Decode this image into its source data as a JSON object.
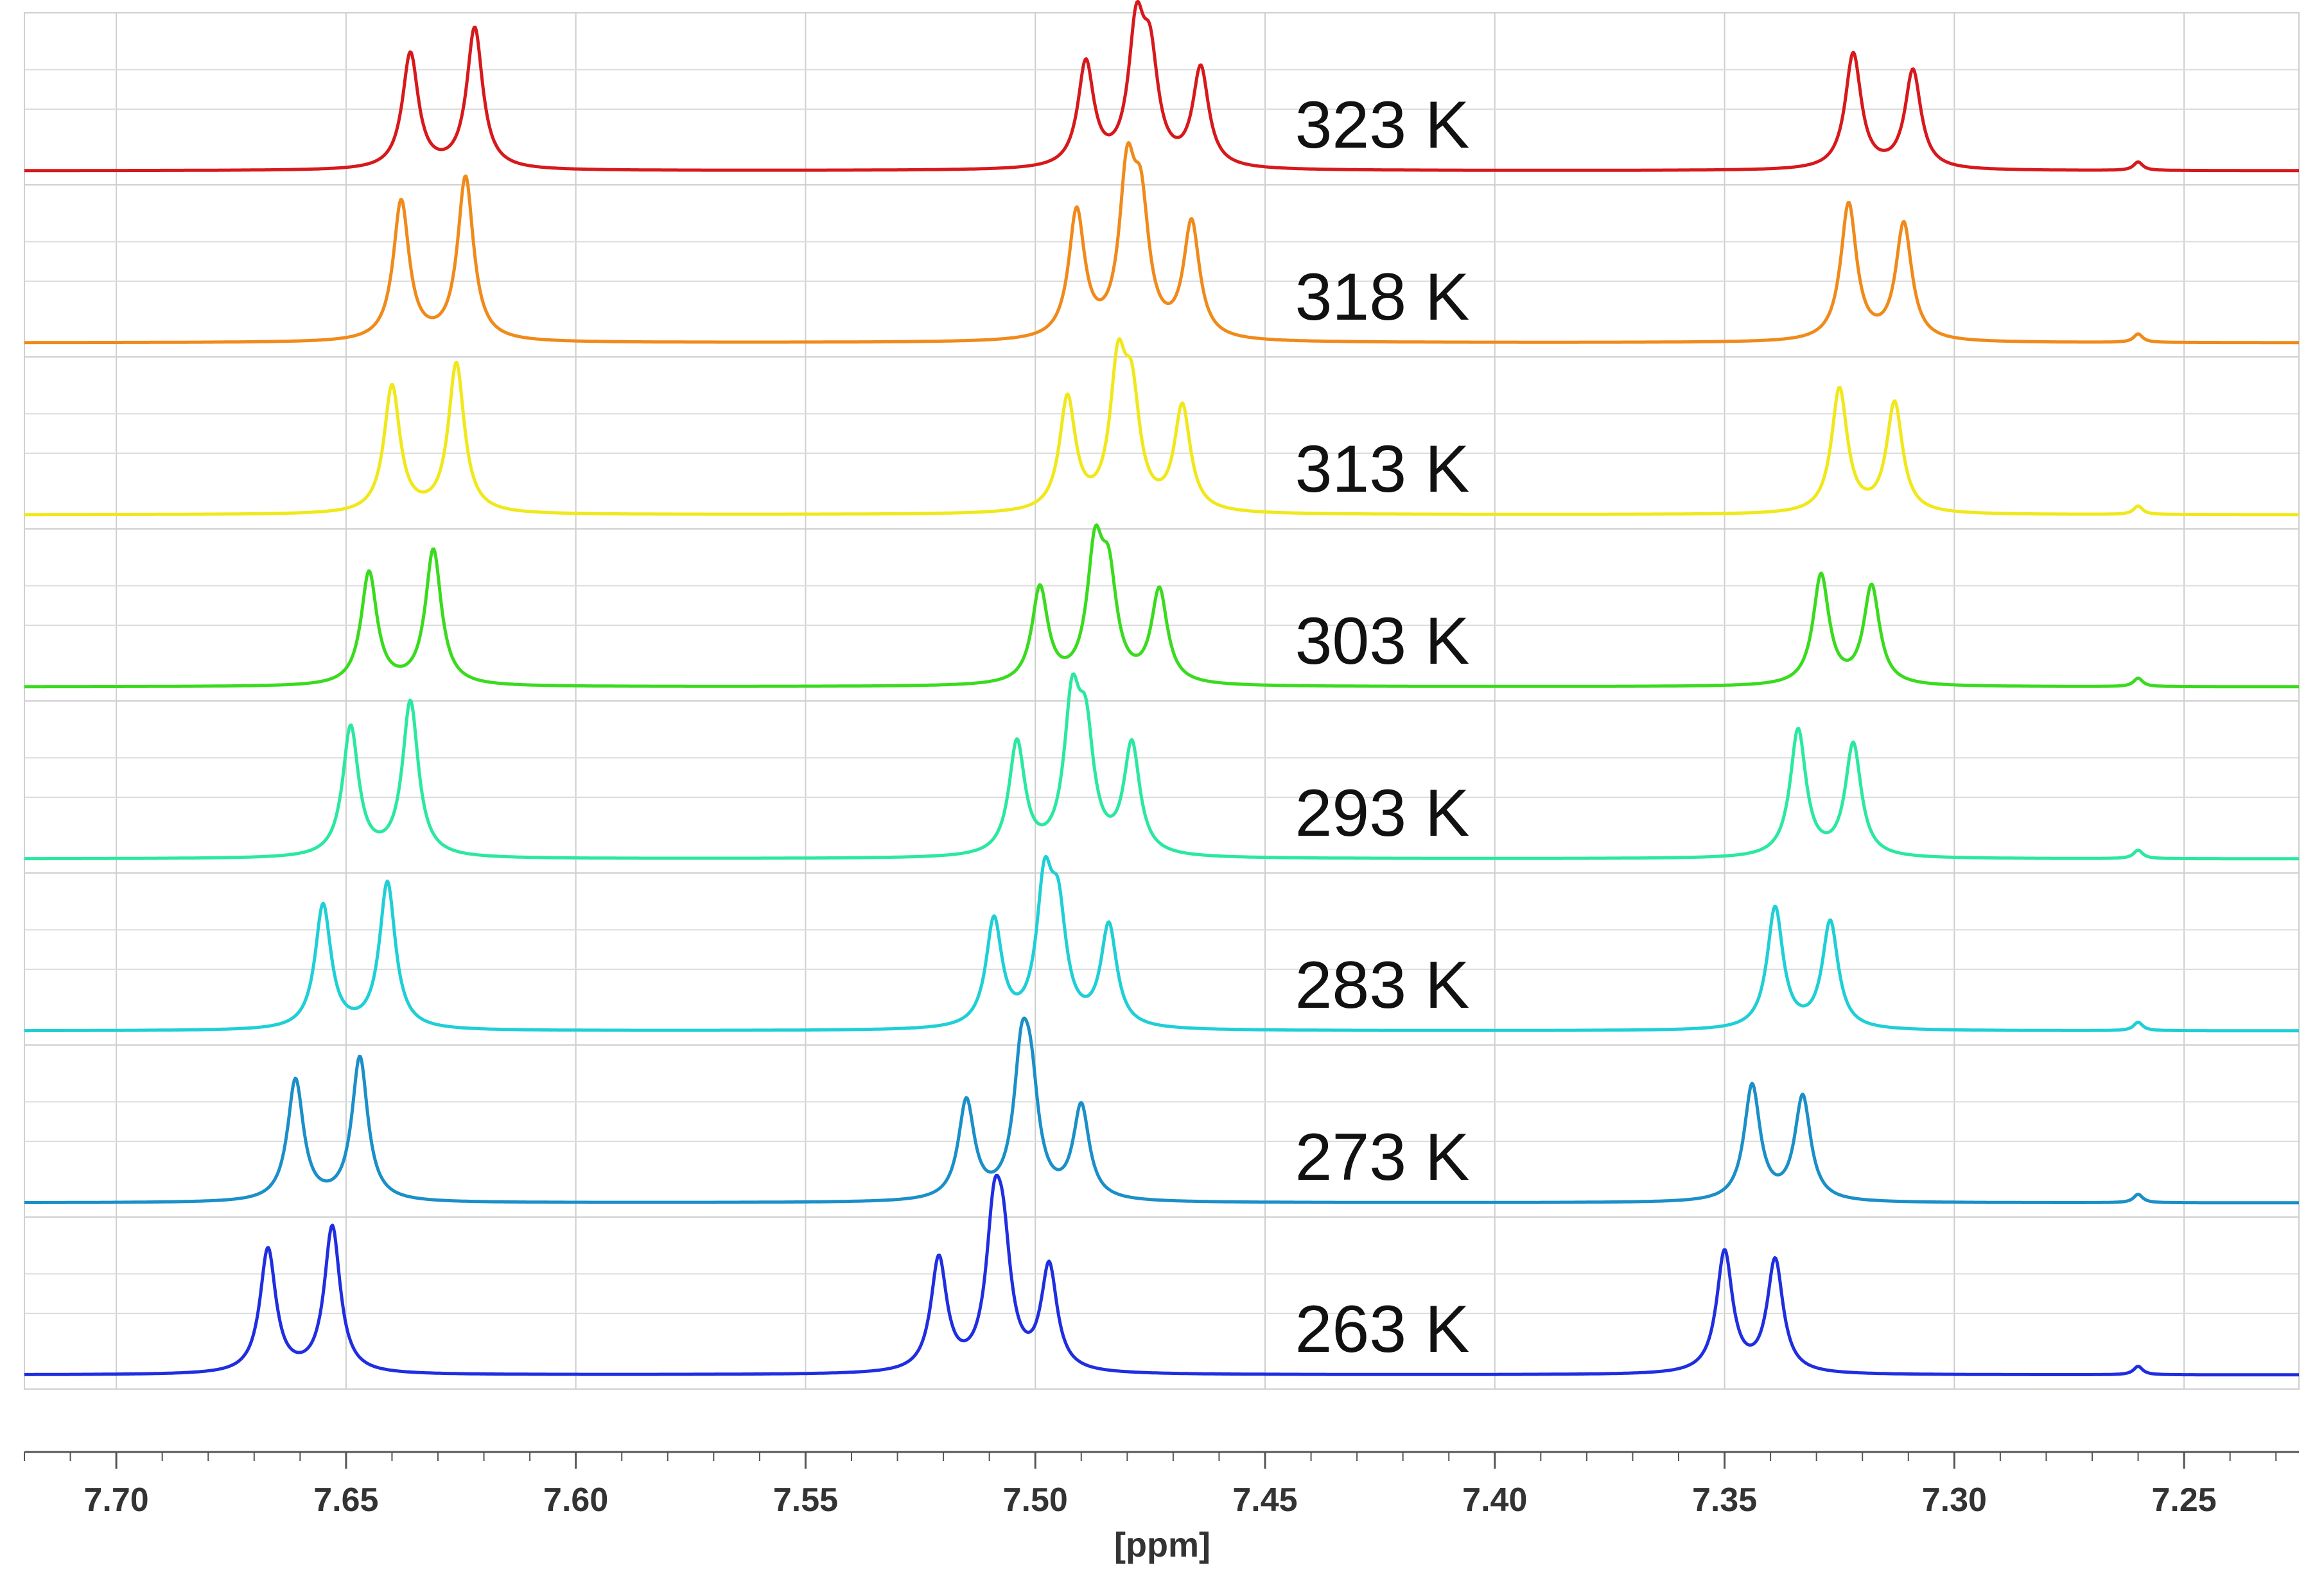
{
  "chart_data": {
    "type": "line",
    "title": "",
    "xlabel": "[ppm]",
    "ylabel": "",
    "x_reversed": true,
    "xlim": [
      7.72,
      7.225
    ],
    "x_ticks": [
      7.7,
      7.65,
      7.6,
      7.55,
      7.5,
      7.45,
      7.4,
      7.35,
      7.3,
      7.25
    ],
    "x_tick_labels": [
      "7.70",
      "7.65",
      "7.60",
      "7.55",
      "7.50",
      "7.45",
      "7.40",
      "7.35",
      "7.30",
      "7.25"
    ],
    "grid": true,
    "legend": "none (series labeled inline)",
    "series": [
      {
        "name": "323 K",
        "color": "#d7191c",
        "peaks": [
          {
            "x": 7.636,
            "h": 0.82
          },
          {
            "x": 7.622,
            "h": 1.0
          },
          {
            "x": 7.489,
            "h": 0.74
          },
          {
            "x": 7.478,
            "h": 0.92
          },
          {
            "x": 7.475,
            "h": 0.68
          },
          {
            "x": 7.464,
            "h": 0.7
          },
          {
            "x": 7.322,
            "h": 0.82
          },
          {
            "x": 7.309,
            "h": 0.7
          },
          {
            "x": 7.26,
            "h": 0.06
          }
        ]
      },
      {
        "name": "318 K",
        "color": "#f08a1a",
        "peaks": [
          {
            "x": 7.638,
            "h": 0.99
          },
          {
            "x": 7.624,
            "h": 1.16
          },
          {
            "x": 7.491,
            "h": 0.9
          },
          {
            "x": 7.48,
            "h": 1.08
          },
          {
            "x": 7.477,
            "h": 0.82
          },
          {
            "x": 7.466,
            "h": 0.82
          },
          {
            "x": 7.323,
            "h": 0.97
          },
          {
            "x": 7.311,
            "h": 0.83
          },
          {
            "x": 7.26,
            "h": 0.06
          }
        ]
      },
      {
        "name": "313 K",
        "color": "#f0e81a",
        "peaks": [
          {
            "x": 7.64,
            "h": 0.9
          },
          {
            "x": 7.626,
            "h": 1.06
          },
          {
            "x": 7.493,
            "h": 0.8
          },
          {
            "x": 7.482,
            "h": 0.95
          },
          {
            "x": 7.479,
            "h": 0.72
          },
          {
            "x": 7.468,
            "h": 0.74
          },
          {
            "x": 7.325,
            "h": 0.88
          },
          {
            "x": 7.313,
            "h": 0.78
          },
          {
            "x": 7.26,
            "h": 0.06
          }
        ]
      },
      {
        "name": "303 K",
        "color": "#3adb1f",
        "peaks": [
          {
            "x": 7.645,
            "h": 0.8
          },
          {
            "x": 7.631,
            "h": 0.96
          },
          {
            "x": 7.499,
            "h": 0.68
          },
          {
            "x": 7.487,
            "h": 0.88
          },
          {
            "x": 7.484,
            "h": 0.66
          },
          {
            "x": 7.473,
            "h": 0.66
          },
          {
            "x": 7.329,
            "h": 0.78
          },
          {
            "x": 7.318,
            "h": 0.7
          },
          {
            "x": 7.26,
            "h": 0.06
          }
        ]
      },
      {
        "name": "293 K",
        "color": "#2be8a0",
        "peaks": [
          {
            "x": 7.649,
            "h": 0.92
          },
          {
            "x": 7.636,
            "h": 1.1
          },
          {
            "x": 7.504,
            "h": 0.8
          },
          {
            "x": 7.492,
            "h": 1.0
          },
          {
            "x": 7.489,
            "h": 0.76
          },
          {
            "x": 7.479,
            "h": 0.78
          },
          {
            "x": 7.334,
            "h": 0.9
          },
          {
            "x": 7.322,
            "h": 0.8
          },
          {
            "x": 7.26,
            "h": 0.06
          }
        ]
      },
      {
        "name": "283 K",
        "color": "#1fcfd6",
        "peaks": [
          {
            "x": 7.655,
            "h": 0.88
          },
          {
            "x": 7.641,
            "h": 1.04
          },
          {
            "x": 7.509,
            "h": 0.76
          },
          {
            "x": 7.498,
            "h": 0.94
          },
          {
            "x": 7.495,
            "h": 0.72
          },
          {
            "x": 7.484,
            "h": 0.72
          },
          {
            "x": 7.339,
            "h": 0.86
          },
          {
            "x": 7.327,
            "h": 0.76
          },
          {
            "x": 7.26,
            "h": 0.06
          }
        ]
      },
      {
        "name": "273 K",
        "color": "#1a8fc8",
        "peaks": [
          {
            "x": 7.661,
            "h": 0.86
          },
          {
            "x": 7.647,
            "h": 1.02
          },
          {
            "x": 7.515,
            "h": 0.7
          },
          {
            "x": 7.503,
            "h": 0.88
          },
          {
            "x": 7.501,
            "h": 0.66
          },
          {
            "x": 7.49,
            "h": 0.66
          },
          {
            "x": 7.344,
            "h": 0.82
          },
          {
            "x": 7.333,
            "h": 0.74
          },
          {
            "x": 7.26,
            "h": 0.06
          }
        ]
      },
      {
        "name": "263 K",
        "color": "#1f2ee0",
        "peaks": [
          {
            "x": 7.667,
            "h": 0.88
          },
          {
            "x": 7.653,
            "h": 1.04
          },
          {
            "x": 7.521,
            "h": 0.8
          },
          {
            "x": 7.509,
            "h": 0.94
          },
          {
            "x": 7.507,
            "h": 0.72
          },
          {
            "x": 7.497,
            "h": 0.74
          },
          {
            "x": 7.35,
            "h": 0.86
          },
          {
            "x": 7.339,
            "h": 0.8
          },
          {
            "x": 7.26,
            "h": 0.06
          }
        ]
      }
    ]
  }
}
